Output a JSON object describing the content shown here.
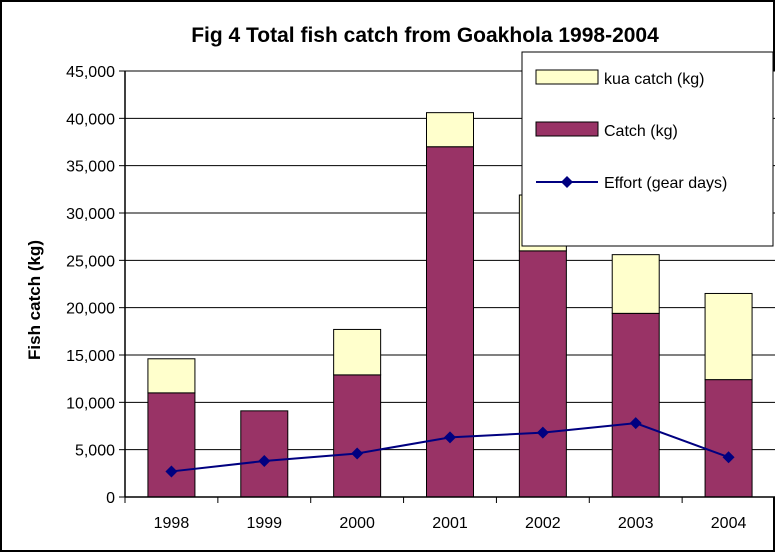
{
  "chart_data": {
    "type": "bar",
    "stacked": true,
    "title": "Fig 4 Total fish catch from Goakhola 1998-2004",
    "xlabel": "",
    "ylabel": "Fish catch (kg)",
    "ylim": [
      0,
      45000
    ],
    "yticks": [
      0,
      5000,
      10000,
      15000,
      20000,
      25000,
      30000,
      35000,
      40000,
      45000
    ],
    "ytick_labels": [
      "0",
      "5,000",
      "10,000",
      "15,000",
      "20,000",
      "25,000",
      "30,000",
      "35,000",
      "40,000",
      "45,000"
    ],
    "categories": [
      "1998",
      "1999",
      "2000",
      "2001",
      "2002",
      "2003",
      "2004"
    ],
    "grid": true,
    "legend_position": "top-right",
    "series": [
      {
        "name": "Catch (kg)",
        "kind": "bar",
        "color": "#993366",
        "values": [
          11000,
          9100,
          12900,
          37000,
          26000,
          19400,
          12400
        ]
      },
      {
        "name": "kua catch (kg)",
        "kind": "bar",
        "color": "#FFFFCC",
        "values": [
          3600,
          0,
          4800,
          3600,
          5900,
          6200,
          9100
        ]
      },
      {
        "name": "Effort (gear days)",
        "kind": "line",
        "color": "#000080",
        "values": [
          2700,
          3800,
          4600,
          6300,
          6800,
          7800,
          4200
        ]
      }
    ],
    "legend": [
      "kua catch (kg)",
      "Catch (kg)",
      "Effort (gear days)"
    ]
  }
}
